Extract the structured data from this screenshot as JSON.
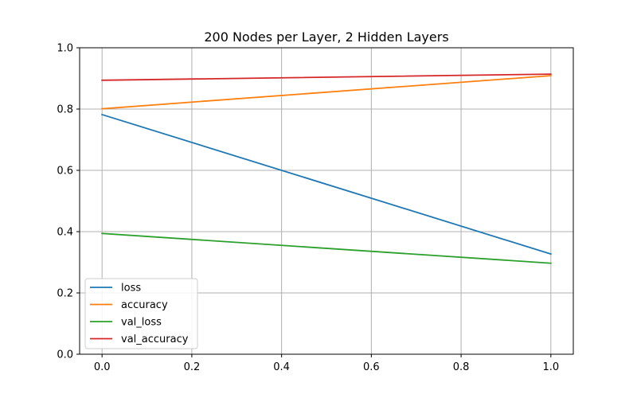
{
  "chart_data": {
    "type": "line",
    "title": "200 Nodes per Layer, 2 Hidden Layers",
    "xlabel": "",
    "ylabel": "",
    "x": [
      0.0,
      1.0
    ],
    "xlim": [
      -0.05,
      1.05
    ],
    "ylim": [
      0.0,
      1.0
    ],
    "xticks": [
      "0.0",
      "0.2",
      "0.4",
      "0.6",
      "0.8",
      "1.0"
    ],
    "yticks": [
      "0.0",
      "0.2",
      "0.4",
      "0.6",
      "0.8",
      "1.0"
    ],
    "grid": true,
    "legend_position": "lower-left",
    "series": [
      {
        "name": "loss",
        "values": [
          0.782,
          0.327
        ],
        "color": "#1f77b4"
      },
      {
        "name": "accuracy",
        "values": [
          0.801,
          0.909
        ],
        "color": "#ff7f0e"
      },
      {
        "name": "val_loss",
        "values": [
          0.394,
          0.297
        ],
        "color": "#2ca02c"
      },
      {
        "name": "val_accuracy",
        "values": [
          0.894,
          0.914
        ],
        "color": "#d62728"
      }
    ]
  }
}
